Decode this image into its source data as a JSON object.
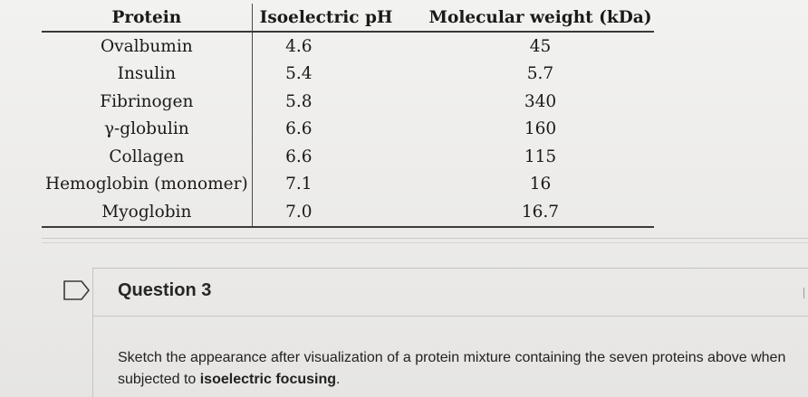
{
  "table": {
    "headers": {
      "protein": "Protein",
      "pi": "Isoelectric pH",
      "mw": "Molecular weight (kDa)"
    },
    "rows": [
      {
        "protein": "Ovalbumin",
        "pi": "4.6",
        "mw": "45"
      },
      {
        "protein": "Insulin",
        "pi": "5.4",
        "mw": "5.7"
      },
      {
        "protein": "Fibrinogen",
        "pi": "5.8",
        "mw": "340"
      },
      {
        "protein": "γ-globulin",
        "pi": "6.6",
        "mw": "160"
      },
      {
        "protein": "Collagen",
        "pi": "6.6",
        "mw": "115"
      },
      {
        "protein": "Hemoglobin (monomer)",
        "pi": "7.1",
        "mw": "16"
      },
      {
        "protein": "Myoglobin",
        "pi": "7.0",
        "mw": "16.7"
      }
    ]
  },
  "question": {
    "title": "Question 3",
    "prompt_start": "Sketch the appearance after visualization of a protein mixture containing the seven proteins above when subjected to ",
    "prompt_emphasis": "isoelectric focusing",
    "prompt_end": "."
  },
  "icons": {
    "flag": "flag-icon"
  }
}
